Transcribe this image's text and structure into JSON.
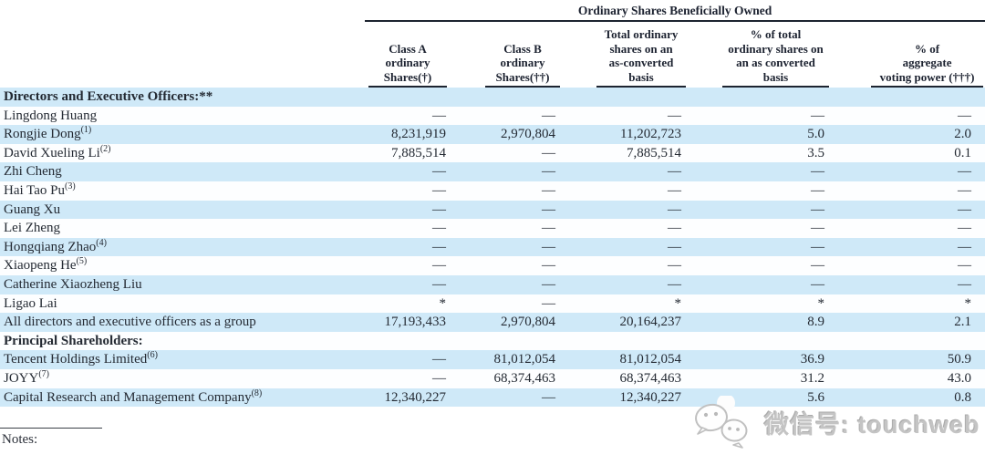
{
  "table": {
    "span_header": "Ordinary Shares Beneficially Owned",
    "columns": [
      "Class A\nordinary\nShares(†)",
      "Class B\nordinary\nShares(††)",
      "Total ordinary\nshares on an\nas-converted\nbasis",
      "% of total\nordinary shares on\nan as converted\nbasis",
      "% of\naggregate\nvoting power (†††)"
    ],
    "rows": [
      {
        "type": "section",
        "label": "Directors and Executive Officers:**",
        "shaded": true
      },
      {
        "type": "data",
        "name": "Lingdong Huang",
        "sup": "",
        "shaded": false,
        "values": [
          "—",
          "—",
          "—",
          "—",
          "—"
        ]
      },
      {
        "type": "data",
        "name": "Rongjie Dong",
        "sup": "(1)",
        "shaded": true,
        "values": [
          "8,231,919",
          "2,970,804",
          "11,202,723",
          "5.0",
          "2.0"
        ]
      },
      {
        "type": "data",
        "name": "David Xueling Li",
        "sup": "(2)",
        "shaded": false,
        "values": [
          "7,885,514",
          "—",
          "7,885,514",
          "3.5",
          "0.1"
        ]
      },
      {
        "type": "data",
        "name": "Zhi Cheng",
        "sup": "",
        "shaded": true,
        "values": [
          "—",
          "—",
          "—",
          "—",
          "—"
        ]
      },
      {
        "type": "data",
        "name": "Hai Tao Pu",
        "sup": "(3)",
        "shaded": false,
        "values": [
          "—",
          "—",
          "—",
          "—",
          "—"
        ]
      },
      {
        "type": "data",
        "name": "Guang Xu",
        "sup": "",
        "shaded": true,
        "values": [
          "—",
          "—",
          "—",
          "—",
          "—"
        ]
      },
      {
        "type": "data",
        "name": "Lei Zheng",
        "sup": "",
        "shaded": false,
        "values": [
          "—",
          "—",
          "—",
          "—",
          "—"
        ]
      },
      {
        "type": "data",
        "name": "Hongqiang Zhao",
        "sup": "(4)",
        "shaded": true,
        "values": [
          "—",
          "—",
          "—",
          "—",
          "—"
        ]
      },
      {
        "type": "data",
        "name": "Xiaopeng He",
        "sup": "(5)",
        "shaded": false,
        "values": [
          "—",
          "—",
          "—",
          "—",
          "—"
        ]
      },
      {
        "type": "data",
        "name": "Catherine Xiaozheng Liu",
        "sup": "",
        "shaded": true,
        "values": [
          "—",
          "—",
          "—",
          "—",
          "—"
        ]
      },
      {
        "type": "data",
        "name": "Ligao Lai",
        "sup": "",
        "shaded": false,
        "values": [
          "*",
          "—",
          "*",
          "*",
          "*"
        ]
      },
      {
        "type": "data",
        "name": "All directors and executive officers as a group",
        "sup": "",
        "shaded": true,
        "values": [
          "17,193,433",
          "2,970,804",
          "20,164,237",
          "8.9",
          "2.1"
        ]
      },
      {
        "type": "section",
        "label": "Principal Shareholders:",
        "shaded": false
      },
      {
        "type": "data",
        "name": "Tencent Holdings Limited",
        "sup": "(6)",
        "shaded": true,
        "values": [
          "—",
          "81,012,054",
          "81,012,054",
          "36.9",
          "50.9"
        ]
      },
      {
        "type": "data",
        "name": "JOYY",
        "sup": "(7)",
        "shaded": false,
        "values": [
          "—",
          "68,374,463",
          "68,374,463",
          "31.2",
          "43.0"
        ]
      },
      {
        "type": "data",
        "name": "Capital Research and Management Company",
        "sup": "(8)",
        "shaded": true,
        "values": [
          "12,340,227",
          "—",
          "12,340,227",
          "5.6",
          "0.8"
        ]
      }
    ]
  },
  "notes_label": "Notes:",
  "watermark": {
    "text": "微信号: touchweb"
  },
  "colors": {
    "row_shaded": "#cfe9f8",
    "row_plain": "#fdfeff",
    "ink": "#242a33",
    "rule": "#1d2430",
    "watermark_gray": "#c4c4c4"
  }
}
